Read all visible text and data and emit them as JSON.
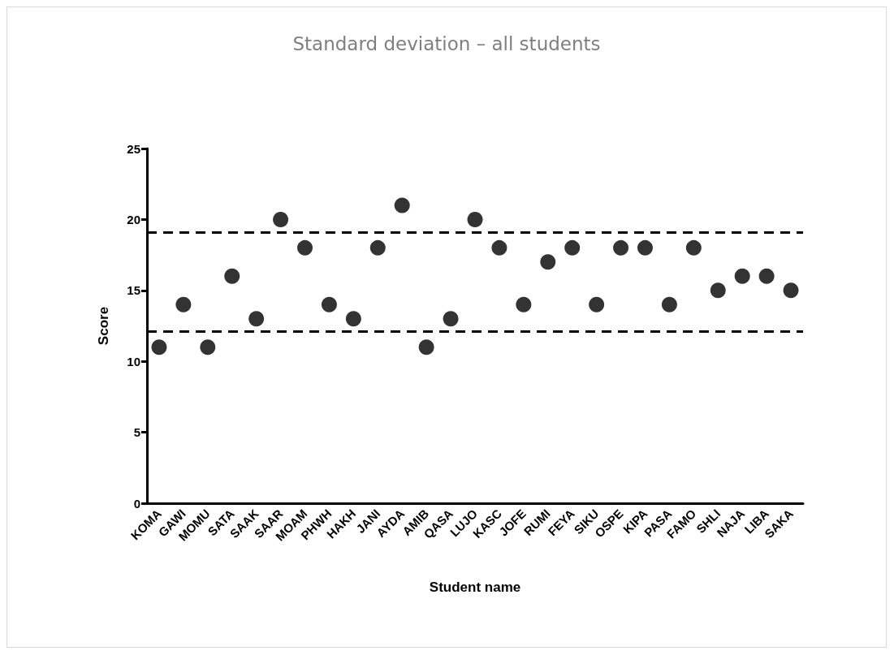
{
  "chart_data": {
    "type": "scatter",
    "title": "Standard deviation – all students",
    "xlabel": "Student name",
    "ylabel": "Score",
    "categories": [
      "KOMA",
      "GAWI",
      "MOMU",
      "SATA",
      "SAAK",
      "SAAR",
      "MOAM",
      "PHWH",
      "HAKH",
      "JANI",
      "AYDA",
      "AMIB",
      "QASA",
      "LUJO",
      "KASC",
      "JOFE",
      "RUMI",
      "FEYA",
      "SIKU",
      "OSPE",
      "KIPA",
      "PASA",
      "FAMO",
      "SHLI",
      "NAJA",
      "LIBA",
      "SAKA"
    ],
    "values": [
      11,
      14,
      11,
      16,
      13,
      20,
      18,
      14,
      13,
      18,
      21,
      11,
      13,
      20,
      18,
      14,
      17,
      18,
      14,
      18,
      18,
      14,
      18,
      15,
      16,
      16,
      15
    ],
    "color": "#000000",
    "marker": "circle",
    "grid": false,
    "ylim": [
      0,
      25
    ],
    "yticks": [
      0,
      5,
      10,
      15,
      20,
      25
    ],
    "ref_lines": [
      {
        "axis": "y",
        "value": 19.1,
        "color": "#000000",
        "line_style": "dashed"
      },
      {
        "axis": "y",
        "value": 12.1,
        "color": "#000000",
        "line_style": "dashed"
      }
    ]
  }
}
